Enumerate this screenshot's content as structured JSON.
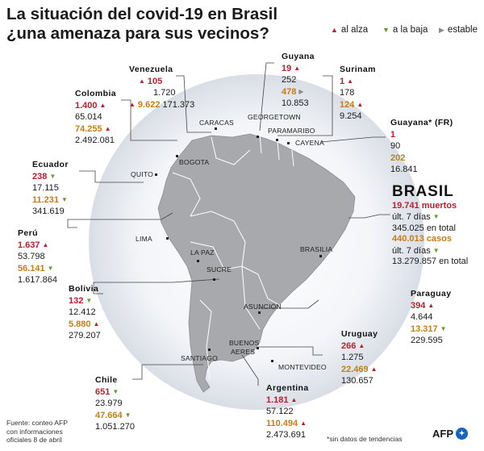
{
  "title": {
    "line1": "La situación del covid-19 en Brasil",
    "line2": "¿una amenaza para sus vecinos?"
  },
  "legend": {
    "up": "al alza",
    "down": "a la baja",
    "stable": "estable"
  },
  "icons": {
    "up": "▲",
    "down": "▼",
    "stable": "▶"
  },
  "colors": {
    "up": "#b81f2e",
    "down": "#6a9a2b",
    "stable": "#8a8a8a",
    "cases": "#c67d15"
  },
  "cities": {
    "caracas": "CARACAS",
    "georgetown": "GEORGETOWN",
    "paramaribo": "PARAMARIBO",
    "cayena": "CAYENA",
    "bogota": "BOGOTA",
    "quito": "QUITO",
    "lima": "LIMA",
    "la_paz": "LA PAZ",
    "sucre": "SUCRE",
    "brasilia": "BRASILIA",
    "asuncion": "ASUNCIÓN",
    "buenos_aires_1": "BUENOS",
    "buenos_aires_2": "AERES",
    "montevideo": "MONTEVIDEO",
    "santiago": "SANTIAGO"
  },
  "countries": {
    "venezuela": {
      "name": "Venezuela",
      "deaths": "105",
      "deaths_trend": "up",
      "deaths_total": "1.720",
      "cases": "9.622",
      "cases_trend": "up",
      "cases_total": "171.373"
    },
    "colombia": {
      "name": "Colombia",
      "deaths": "1.400",
      "deaths_trend": "up",
      "deaths_total": "65.014",
      "cases": "74.255",
      "cases_trend": "up",
      "cases_total": "2.492.081"
    },
    "guyana": {
      "name": "Guyana",
      "deaths": "19",
      "deaths_trend": "up",
      "deaths_total": "252",
      "cases": "478",
      "cases_trend": "stable",
      "cases_total": "10.853"
    },
    "surinam": {
      "name": "Surinam",
      "deaths": "1",
      "deaths_trend": "up",
      "deaths_total": "178",
      "cases": "124",
      "cases_trend": "up",
      "cases_total": "9.254"
    },
    "guayana": {
      "name": "Guayana* (FR)",
      "deaths": "1",
      "deaths_total": "90",
      "cases": "202",
      "cases_total": "16.841"
    },
    "ecuador": {
      "name": "Ecuador",
      "deaths": "238",
      "deaths_trend": "down",
      "deaths_total": "17.115",
      "cases": "11.231",
      "cases_trend": "down",
      "cases_total": "341.619"
    },
    "peru": {
      "name": "Perú",
      "deaths": "1.637",
      "deaths_trend": "up",
      "deaths_total": "53.798",
      "cases": "56.141",
      "cases_trend": "down",
      "cases_total": "1.617.864"
    },
    "bolivia": {
      "name": "Bolivia",
      "deaths": "132",
      "deaths_trend": "down",
      "deaths_total": "12.412",
      "cases": "5.880",
      "cases_trend": "up",
      "cases_total": "279.207"
    },
    "chile": {
      "name": "Chile",
      "deaths": "651",
      "deaths_trend": "down",
      "deaths_total": "23.979",
      "cases": "47.664",
      "cases_trend": "down",
      "cases_total": "1.051.270"
    },
    "argentina": {
      "name": "Argentina",
      "deaths": "1.181",
      "deaths_trend": "up",
      "deaths_total": "57.122",
      "cases": "110.494",
      "cases_trend": "up",
      "cases_total": "2.473.691"
    },
    "uruguay": {
      "name": "Uruguay",
      "deaths": "266",
      "deaths_trend": "up",
      "deaths_total": "1.275",
      "cases": "22.469",
      "cases_trend": "up",
      "cases_total": "130.657"
    },
    "paraguay": {
      "name": "Paraguay",
      "deaths": "394",
      "deaths_trend": "up",
      "deaths_total": "4.644",
      "cases": "13.317",
      "cases_trend": "down",
      "cases_total": "229.595"
    }
  },
  "brasil": {
    "name": "BRASIL",
    "deaths": "19.741 muertos",
    "deaths_period": "últ. 7 días",
    "deaths_trend": "down",
    "deaths_total": "345.025 en total",
    "cases": "440.013 casos",
    "cases_period": "últ. 7 días",
    "cases_trend": "down",
    "cases_total": "13.279.857 en total"
  },
  "footer": {
    "source_1": "Fuente: conteo AFP",
    "source_2": "con informaciones",
    "source_3": "oficiales 8 de abril",
    "note": "*sin datos de tendencias",
    "brand": "AFP"
  }
}
